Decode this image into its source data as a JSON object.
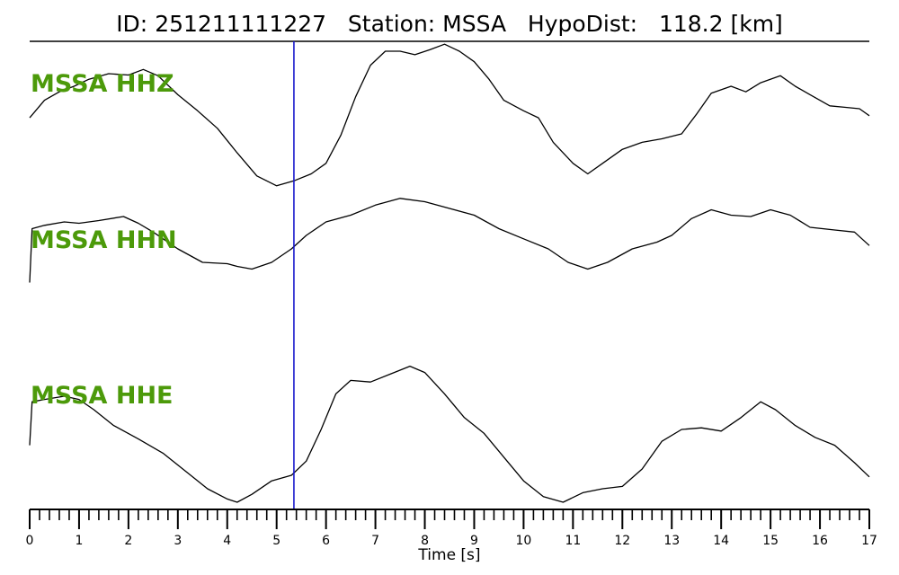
{
  "header": {
    "id_label": "ID:",
    "id_value": "251211111227",
    "station_label": "Station:",
    "station_value": "MSSA",
    "hypodist_label": "HypoDist:",
    "hypodist_value": "118.2 [km]"
  },
  "colors": {
    "trace": "#000000",
    "label": "#4c9a0a",
    "pick_line": "#1a1acc"
  },
  "chart_data": {
    "type": "line",
    "title": "ID: 251211111227   Station: MSSA   HypoDist:   118.2 [km]",
    "xlabel": "Time [s]",
    "ylabel": "",
    "xlim": [
      0,
      17
    ],
    "x_ticks": [
      "0",
      "1",
      "2",
      "3",
      "4",
      "5",
      "6",
      "7",
      "8",
      "9",
      "10",
      "11",
      "12",
      "13",
      "14",
      "15",
      "16",
      "17"
    ],
    "minor_tick_step": 0.2,
    "grid": false,
    "vertical_marker_time": 5.35,
    "series": [
      {
        "name": "MSSA HHZ",
        "label": "MSSA HHZ",
        "points": [
          [
            0,
            0.05
          ],
          [
            0.3,
            0.3
          ],
          [
            0.6,
            0.42
          ],
          [
            0.9,
            0.5
          ],
          [
            1.2,
            0.6
          ],
          [
            1.6,
            0.68
          ],
          [
            2.0,
            0.66
          ],
          [
            2.3,
            0.74
          ],
          [
            2.6,
            0.65
          ],
          [
            3.0,
            0.38
          ],
          [
            3.4,
            0.15
          ],
          [
            3.8,
            -0.1
          ],
          [
            4.2,
            -0.45
          ],
          [
            4.6,
            -0.78
          ],
          [
            5.0,
            -0.92
          ],
          [
            5.35,
            -0.85
          ],
          [
            5.7,
            -0.75
          ],
          [
            6.0,
            -0.6
          ],
          [
            6.3,
            -0.2
          ],
          [
            6.6,
            0.35
          ],
          [
            6.9,
            0.8
          ],
          [
            7.2,
            1.0
          ],
          [
            7.5,
            1.0
          ],
          [
            7.8,
            0.95
          ],
          [
            8.1,
            1.02
          ],
          [
            8.4,
            1.1
          ],
          [
            8.7,
            1.0
          ],
          [
            9.0,
            0.85
          ],
          [
            9.3,
            0.6
          ],
          [
            9.6,
            0.3
          ],
          [
            10.0,
            0.15
          ],
          [
            10.3,
            0.05
          ],
          [
            10.6,
            -0.3
          ],
          [
            11.0,
            -0.6
          ],
          [
            11.3,
            -0.75
          ],
          [
            11.6,
            -0.6
          ],
          [
            12.0,
            -0.4
          ],
          [
            12.4,
            -0.3
          ],
          [
            12.8,
            -0.25
          ],
          [
            13.2,
            -0.18
          ],
          [
            13.5,
            0.1
          ],
          [
            13.8,
            0.4
          ],
          [
            14.2,
            0.5
          ],
          [
            14.5,
            0.42
          ],
          [
            14.8,
            0.55
          ],
          [
            15.2,
            0.65
          ],
          [
            15.5,
            0.5
          ],
          [
            15.8,
            0.38
          ],
          [
            16.2,
            0.22
          ],
          [
            16.5,
            0.2
          ],
          [
            16.8,
            0.18
          ],
          [
            17.0,
            0.08
          ]
        ]
      },
      {
        "name": "MSSA HHN",
        "label": "MSSA HHN",
        "points": [
          [
            0,
            -0.7
          ],
          [
            0.05,
            0.1
          ],
          [
            0.3,
            0.15
          ],
          [
            0.7,
            0.2
          ],
          [
            1.0,
            0.18
          ],
          [
            1.4,
            0.22
          ],
          [
            1.9,
            0.28
          ],
          [
            2.2,
            0.18
          ],
          [
            2.5,
            0.05
          ],
          [
            3.0,
            -0.2
          ],
          [
            3.5,
            -0.4
          ],
          [
            4.0,
            -0.42
          ],
          [
            4.2,
            -0.46
          ],
          [
            4.5,
            -0.5
          ],
          [
            4.9,
            -0.4
          ],
          [
            5.3,
            -0.2
          ],
          [
            5.6,
            0.0
          ],
          [
            6.0,
            0.2
          ],
          [
            6.5,
            0.3
          ],
          [
            7.0,
            0.45
          ],
          [
            7.5,
            0.55
          ],
          [
            8.0,
            0.5
          ],
          [
            8.5,
            0.4
          ],
          [
            9.0,
            0.3
          ],
          [
            9.5,
            0.1
          ],
          [
            10.0,
            -0.05
          ],
          [
            10.5,
            -0.2
          ],
          [
            10.9,
            -0.4
          ],
          [
            11.3,
            -0.5
          ],
          [
            11.7,
            -0.4
          ],
          [
            12.2,
            -0.2
          ],
          [
            12.7,
            -0.1
          ],
          [
            13.0,
            0.0
          ],
          [
            13.4,
            0.25
          ],
          [
            13.8,
            0.38
          ],
          [
            14.2,
            0.3
          ],
          [
            14.6,
            0.28
          ],
          [
            15.0,
            0.38
          ],
          [
            15.4,
            0.3
          ],
          [
            15.8,
            0.12
          ],
          [
            16.3,
            0.08
          ],
          [
            16.7,
            0.05
          ],
          [
            17.0,
            -0.15
          ]
        ]
      },
      {
        "name": "MSSA HHE",
        "label": "MSSA HHE",
        "points": [
          [
            0,
            -0.2
          ],
          [
            0.05,
            0.35
          ],
          [
            0.3,
            0.38
          ],
          [
            0.7,
            0.42
          ],
          [
            1.0,
            0.38
          ],
          [
            1.3,
            0.25
          ],
          [
            1.7,
            0.05
          ],
          [
            2.2,
            -0.12
          ],
          [
            2.7,
            -0.3
          ],
          [
            3.2,
            -0.55
          ],
          [
            3.6,
            -0.75
          ],
          [
            4.0,
            -0.88
          ],
          [
            4.2,
            -0.92
          ],
          [
            4.5,
            -0.82
          ],
          [
            4.9,
            -0.65
          ],
          [
            5.3,
            -0.58
          ],
          [
            5.6,
            -0.4
          ],
          [
            5.9,
            0.0
          ],
          [
            6.2,
            0.45
          ],
          [
            6.5,
            0.62
          ],
          [
            6.9,
            0.6
          ],
          [
            7.3,
            0.7
          ],
          [
            7.7,
            0.8
          ],
          [
            8.0,
            0.72
          ],
          [
            8.4,
            0.45
          ],
          [
            8.8,
            0.15
          ],
          [
            9.2,
            -0.05
          ],
          [
            9.6,
            -0.35
          ],
          [
            10.0,
            -0.65
          ],
          [
            10.4,
            -0.85
          ],
          [
            10.8,
            -0.92
          ],
          [
            11.2,
            -0.8
          ],
          [
            11.6,
            -0.75
          ],
          [
            12.0,
            -0.72
          ],
          [
            12.4,
            -0.5
          ],
          [
            12.8,
            -0.15
          ],
          [
            13.2,
            0.0
          ],
          [
            13.6,
            0.02
          ],
          [
            14.0,
            -0.02
          ],
          [
            14.4,
            0.15
          ],
          [
            14.8,
            0.35
          ],
          [
            15.1,
            0.25
          ],
          [
            15.5,
            0.05
          ],
          [
            15.9,
            -0.1
          ],
          [
            16.3,
            -0.2
          ],
          [
            16.7,
            -0.42
          ],
          [
            17.0,
            -0.6
          ]
        ]
      }
    ]
  }
}
